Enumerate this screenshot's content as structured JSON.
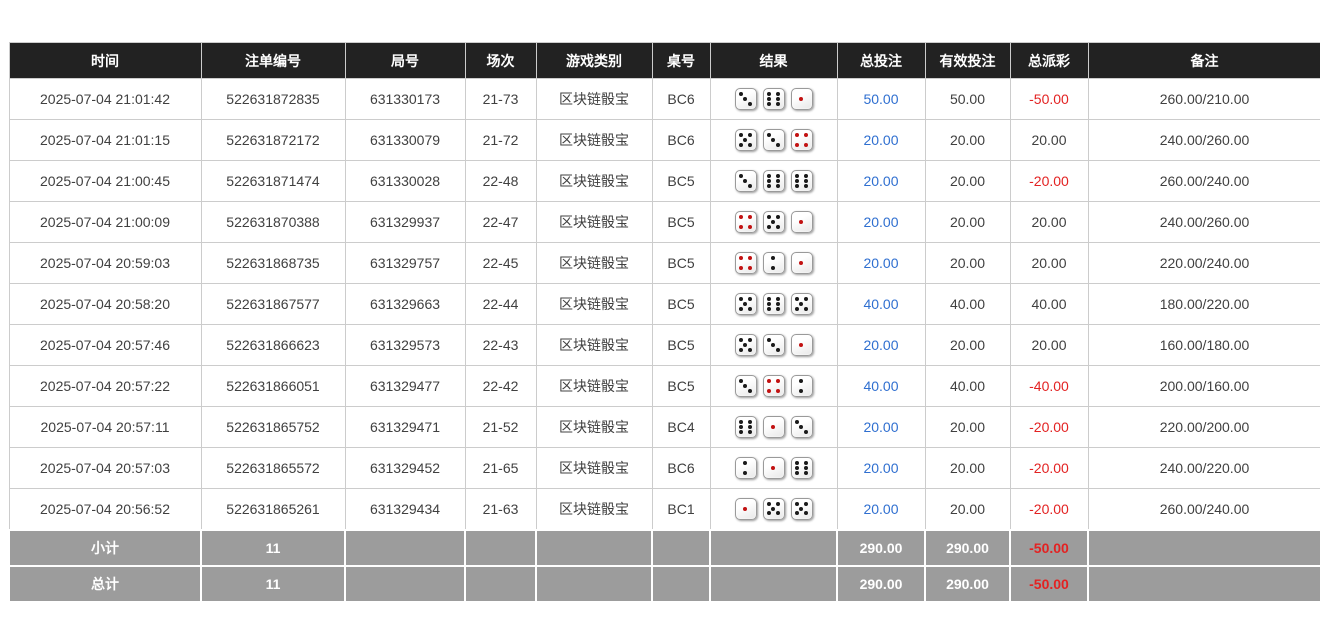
{
  "colors": {
    "header_bg": "#222222",
    "footer_bg": "#9c9c9c",
    "border": "#cccccc",
    "bet_amount_blue": "#2f6fd0",
    "negative_red": "#e32222",
    "die_red_pip": "#c21212",
    "die_black_pip": "#1a1a1a"
  },
  "dice": {
    "red_values": [
      1,
      4
    ]
  },
  "table": {
    "columns": [
      {
        "key": "time",
        "label": "时间"
      },
      {
        "key": "bet_id",
        "label": "注单编号"
      },
      {
        "key": "round_no",
        "label": "局号"
      },
      {
        "key": "session",
        "label": "场次"
      },
      {
        "key": "game_type",
        "label": "游戏类别"
      },
      {
        "key": "table_no",
        "label": "桌号"
      },
      {
        "key": "result",
        "label": "结果"
      },
      {
        "key": "total_bet",
        "label": "总投注"
      },
      {
        "key": "valid_bet",
        "label": "有效投注"
      },
      {
        "key": "total_payout",
        "label": "总派彩"
      },
      {
        "key": "remark",
        "label": "备注"
      }
    ],
    "rows": [
      {
        "time": "2025-07-04 21:01:42",
        "bet_id": "522631872835",
        "round_no": "631330173",
        "session": "21-73",
        "game_type": "区块链骰宝",
        "table_no": "BC6",
        "result": [
          3,
          6,
          1
        ],
        "total_bet": "50.00",
        "valid_bet": "50.00",
        "total_payout": "-50.00",
        "remark": "260.00/210.00"
      },
      {
        "time": "2025-07-04 21:01:15",
        "bet_id": "522631872172",
        "round_no": "631330079",
        "session": "21-72",
        "game_type": "区块链骰宝",
        "table_no": "BC6",
        "result": [
          5,
          3,
          4
        ],
        "total_bet": "20.00",
        "valid_bet": "20.00",
        "total_payout": "20.00",
        "remark": "240.00/260.00"
      },
      {
        "time": "2025-07-04 21:00:45",
        "bet_id": "522631871474",
        "round_no": "631330028",
        "session": "22-48",
        "game_type": "区块链骰宝",
        "table_no": "BC5",
        "result": [
          3,
          6,
          6
        ],
        "total_bet": "20.00",
        "valid_bet": "20.00",
        "total_payout": "-20.00",
        "remark": "260.00/240.00"
      },
      {
        "time": "2025-07-04 21:00:09",
        "bet_id": "522631870388",
        "round_no": "631329937",
        "session": "22-47",
        "game_type": "区块链骰宝",
        "table_no": "BC5",
        "result": [
          4,
          5,
          1
        ],
        "total_bet": "20.00",
        "valid_bet": "20.00",
        "total_payout": "20.00",
        "remark": "240.00/260.00"
      },
      {
        "time": "2025-07-04 20:59:03",
        "bet_id": "522631868735",
        "round_no": "631329757",
        "session": "22-45",
        "game_type": "区块链骰宝",
        "table_no": "BC5",
        "result": [
          4,
          2,
          1
        ],
        "total_bet": "20.00",
        "valid_bet": "20.00",
        "total_payout": "20.00",
        "remark": "220.00/240.00"
      },
      {
        "time": "2025-07-04 20:58:20",
        "bet_id": "522631867577",
        "round_no": "631329663",
        "session": "22-44",
        "game_type": "区块链骰宝",
        "table_no": "BC5",
        "result": [
          5,
          6,
          5
        ],
        "total_bet": "40.00",
        "valid_bet": "40.00",
        "total_payout": "40.00",
        "remark": "180.00/220.00"
      },
      {
        "time": "2025-07-04 20:57:46",
        "bet_id": "522631866623",
        "round_no": "631329573",
        "session": "22-43",
        "game_type": "区块链骰宝",
        "table_no": "BC5",
        "result": [
          5,
          3,
          1
        ],
        "total_bet": "20.00",
        "valid_bet": "20.00",
        "total_payout": "20.00",
        "remark": "160.00/180.00"
      },
      {
        "time": "2025-07-04 20:57:22",
        "bet_id": "522631866051",
        "round_no": "631329477",
        "session": "22-42",
        "game_type": "区块链骰宝",
        "table_no": "BC5",
        "result": [
          3,
          4,
          2
        ],
        "total_bet": "40.00",
        "valid_bet": "40.00",
        "total_payout": "-40.00",
        "remark": "200.00/160.00"
      },
      {
        "time": "2025-07-04 20:57:11",
        "bet_id": "522631865752",
        "round_no": "631329471",
        "session": "21-52",
        "game_type": "区块链骰宝",
        "table_no": "BC4",
        "result": [
          6,
          1,
          3
        ],
        "total_bet": "20.00",
        "valid_bet": "20.00",
        "total_payout": "-20.00",
        "remark": "220.00/200.00"
      },
      {
        "time": "2025-07-04 20:57:03",
        "bet_id": "522631865572",
        "round_no": "631329452",
        "session": "21-65",
        "game_type": "区块链骰宝",
        "table_no": "BC6",
        "result": [
          2,
          1,
          6
        ],
        "total_bet": "20.00",
        "valid_bet": "20.00",
        "total_payout": "-20.00",
        "remark": "240.00/220.00"
      },
      {
        "time": "2025-07-04 20:56:52",
        "bet_id": "522631865261",
        "round_no": "631329434",
        "session": "21-63",
        "game_type": "区块链骰宝",
        "table_no": "BC1",
        "result": [
          1,
          5,
          5
        ],
        "total_bet": "20.00",
        "valid_bet": "20.00",
        "total_payout": "-20.00",
        "remark": "260.00/240.00"
      }
    ],
    "footer_rows": [
      {
        "label": "小计",
        "bet_count": "11",
        "total_bet": "290.00",
        "valid_bet": "290.00",
        "total_payout": "-50.00"
      },
      {
        "label": "总计",
        "bet_count": "11",
        "total_bet": "290.00",
        "valid_bet": "290.00",
        "total_payout": "-50.00"
      }
    ]
  }
}
